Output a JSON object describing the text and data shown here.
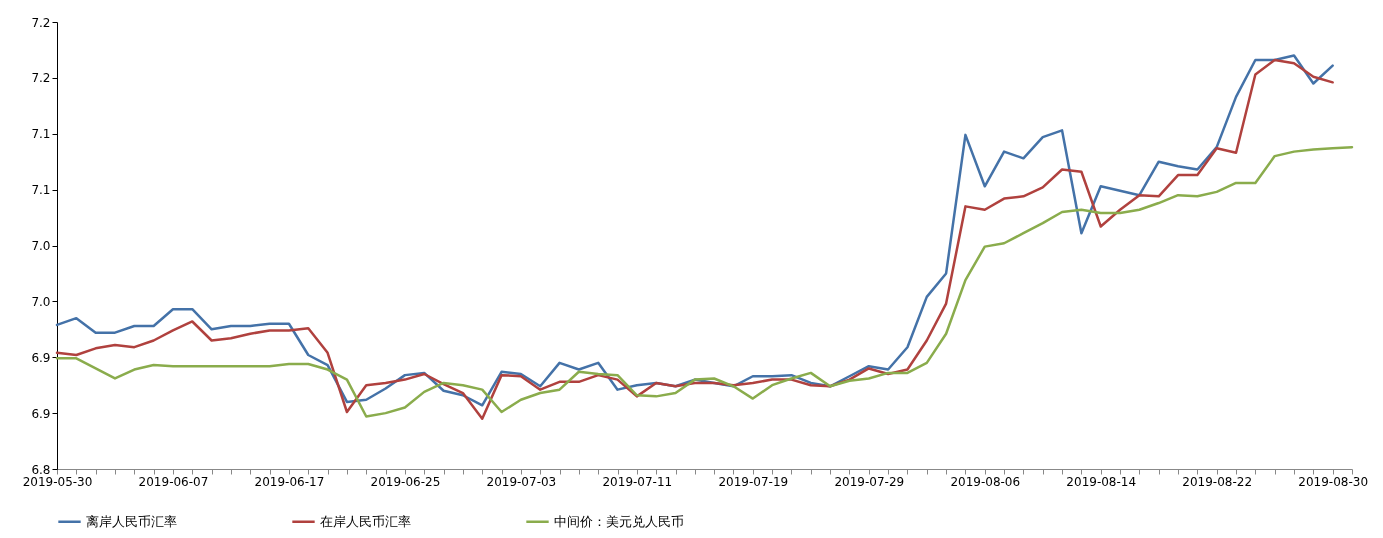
{
  "chart_data": {
    "type": "line",
    "categories": [
      "2019-05-30",
      null,
      null,
      null,
      null,
      null,
      "2019-06-07",
      null,
      null,
      null,
      null,
      null,
      "2019-06-17",
      null,
      null,
      null,
      null,
      null,
      "2019-06-25",
      null,
      null,
      null,
      null,
      null,
      "2019-07-03",
      null,
      null,
      null,
      null,
      null,
      "2019-07-11",
      null,
      null,
      null,
      null,
      null,
      "2019-07-19",
      null,
      null,
      null,
      null,
      null,
      "2019-07-29",
      null,
      null,
      null,
      null,
      null,
      "2019-08-06",
      null,
      null,
      null,
      null,
      null,
      "2019-08-14",
      null,
      null,
      null,
      null,
      null,
      "2019-08-22",
      null,
      null,
      null,
      null,
      null,
      "2019-08-30",
      null
    ],
    "series": [
      {
        "name": "离岸人民币汇率",
        "color": "#4472a8",
        "values": [
          6.929,
          6.935,
          6.922,
          6.922,
          6.928,
          6.928,
          6.943,
          6.943,
          6.925,
          6.928,
          6.928,
          6.93,
          6.93,
          6.902,
          6.893,
          6.86,
          6.862,
          6.872,
          6.884,
          6.886,
          6.87,
          6.866,
          6.857,
          6.887,
          6.885,
          6.874,
          6.895,
          6.889,
          6.895,
          6.871,
          6.875,
          6.877,
          6.874,
          6.88,
          6.877,
          6.874,
          6.883,
          6.883,
          6.884,
          6.877,
          6.874,
          6.883,
          6.892,
          6.889,
          6.909,
          6.954,
          6.975,
          7.099,
          7.053,
          7.084,
          7.078,
          7.097,
          7.103,
          7.011,
          7.053,
          7.049,
          7.045,
          7.075,
          7.071,
          7.068,
          7.088,
          7.133,
          7.166,
          7.166,
          7.17,
          7.145,
          7.161,
          null
        ]
      },
      {
        "name": "在岸人民币汇率",
        "color": "#b0413e",
        "values": [
          6.904,
          6.902,
          6.908,
          6.911,
          6.909,
          6.915,
          6.924,
          6.932,
          6.915,
          6.917,
          6.921,
          6.924,
          6.924,
          6.926,
          6.904,
          6.851,
          6.875,
          6.877,
          6.88,
          6.885,
          6.876,
          6.868,
          6.845,
          6.884,
          6.883,
          6.871,
          6.878,
          6.878,
          6.884,
          6.88,
          6.865,
          6.877,
          6.874,
          6.877,
          6.877,
          6.875,
          6.877,
          6.88,
          6.88,
          6.875,
          6.874,
          6.88,
          6.89,
          6.885,
          6.889,
          6.915,
          6.948,
          7.035,
          7.032,
          7.042,
          7.044,
          7.052,
          7.068,
          7.066,
          7.017,
          7.032,
          7.045,
          7.044,
          7.063,
          7.063,
          7.087,
          7.083,
          7.153,
          7.166,
          7.163,
          7.151,
          7.146,
          null
        ]
      },
      {
        "name": "中间价：美元兑人民币",
        "color": "#8aac4c",
        "values": [
          6.899,
          6.899,
          6.89,
          6.881,
          6.889,
          6.893,
          6.892,
          6.892,
          6.892,
          6.892,
          6.892,
          6.892,
          6.894,
          6.894,
          6.889,
          6.88,
          6.847,
          6.85,
          6.855,
          6.869,
          6.877,
          6.875,
          6.871,
          6.851,
          6.862,
          6.868,
          6.871,
          6.887,
          6.885,
          6.884,
          6.866,
          6.865,
          6.868,
          6.88,
          6.881,
          6.874,
          6.863,
          6.875,
          6.881,
          6.886,
          6.874,
          6.879,
          6.881,
          6.886,
          6.886,
          6.895,
          6.921,
          6.969,
          6.999,
          7.002,
          7.011,
          7.02,
          7.03,
          7.032,
          7.029,
          7.029,
          7.032,
          7.038,
          7.045,
          7.044,
          7.048,
          7.056,
          7.056,
          7.08,
          7.084,
          7.086,
          7.087,
          7.088
        ]
      }
    ],
    "ylim": [
      6.8,
      7.2
    ],
    "yticks": [
      6.8,
      {
        "value": 6.85,
        "label": "6.9"
      },
      6.9,
      {
        "value": 6.95,
        "label": "7.0"
      },
      {
        "value": 7.0,
        "label": "7.0"
      },
      {
        "value": 7.05,
        "label": "7.1"
      },
      7.1,
      {
        "value": 7.15,
        "label": "7.2"
      },
      7.2
    ],
    "grid": false,
    "legend": "bottom",
    "marker": "none",
    "line_style": "solid"
  }
}
